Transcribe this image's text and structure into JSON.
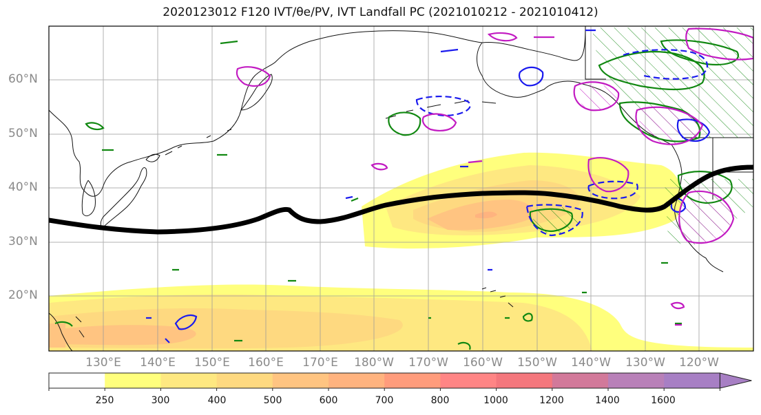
{
  "title": "2020123012 F120 IVT/θe/PV, IVT Landfall PC (2021010212 - 2021010412)",
  "lat_labels": [
    "60°N",
    "50°N",
    "40°N",
    "30°N",
    "20°N"
  ],
  "lon_labels": [
    "130°E",
    "140°E",
    "150°E",
    "160°E",
    "170°E",
    "180°W",
    "170°W",
    "160°W",
    "150°W",
    "140°W",
    "130°W",
    "120°W"
  ],
  "colorbar": {
    "ticks": [
      "250",
      "300",
      "400",
      "500",
      "600",
      "700",
      "800",
      "1000",
      "1200",
      "1400",
      "1600"
    ],
    "colors": [
      "#ffffff",
      "#ffff7d",
      "#fee881",
      "#fed980",
      "#ffc481",
      "#ffb37f",
      "#ff9c7c",
      "#ff8585",
      "#f4777d",
      "#d2799a",
      "#b880b8",
      "#a77fc4"
    ]
  },
  "legend_colors": {
    "jet_axis": "#000000",
    "magenta_contour": "#c21bc2",
    "blue_contour": "#1a1aee",
    "green_contour": "#118811"
  }
}
